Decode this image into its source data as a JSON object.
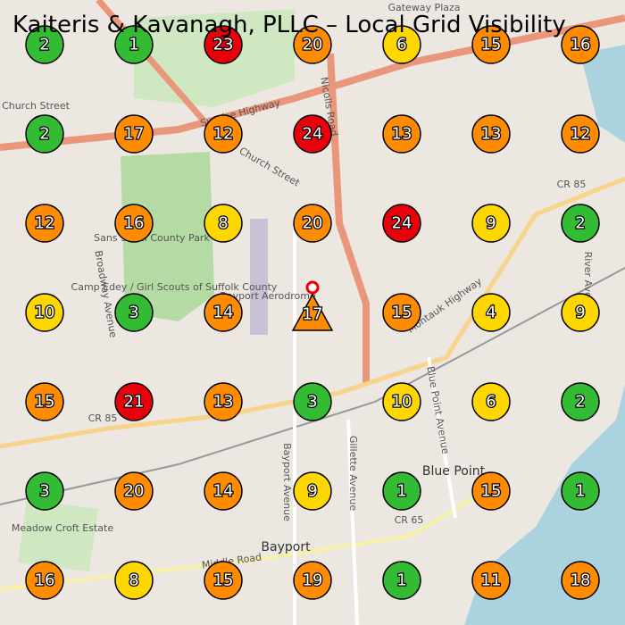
{
  "title": "Kaiteris & Kavanagh, PLLC – Local Grid Visibility",
  "map_labels": [
    "Church Street",
    "Sunrise Highway",
    "Nicolls Road",
    "Church Street",
    "Sans Souci County Park",
    "Camp Edey / Girl Scouts of Suffolk County",
    "Bayport Aerodrome",
    "Broadway Avenue",
    "CR 85",
    "Montauk Highway",
    "Blue Point",
    "Bayport",
    "CR 65",
    "Bayport Avenue",
    "Gillette Avenue",
    "Blue Point Avenue",
    "Meadow Croft Estate",
    "Middle Road",
    "Gateway Plaza",
    "River Avenue",
    "CR 85"
  ],
  "grid": {
    "rows": [
      [
        {
          "value": 2,
          "color": "#33bb33"
        },
        {
          "value": 1,
          "color": "#33bb33"
        },
        {
          "value": 23,
          "color": "#e8000b"
        },
        {
          "value": 20,
          "color": "#ff8c00"
        },
        {
          "value": 6,
          "color": "#ffd700"
        },
        {
          "value": 15,
          "color": "#ff8c00"
        },
        {
          "value": 16,
          "color": "#ff8c00"
        }
      ],
      [
        {
          "value": 2,
          "color": "#33bb33"
        },
        {
          "value": 17,
          "color": "#ff8c00"
        },
        {
          "value": 12,
          "color": "#ff8c00"
        },
        {
          "value": 24,
          "color": "#e8000b"
        },
        {
          "value": 13,
          "color": "#ff8c00"
        },
        {
          "value": 13,
          "color": "#ff8c00"
        },
        {
          "value": 12,
          "color": "#ff8c00"
        }
      ],
      [
        {
          "value": 12,
          "color": "#ff8c00"
        },
        {
          "value": 16,
          "color": "#ff8c00"
        },
        {
          "value": 8,
          "color": "#ffd700"
        },
        {
          "value": 20,
          "color": "#ff8c00"
        },
        {
          "value": 24,
          "color": "#e8000b"
        },
        {
          "value": 9,
          "color": "#ffd700"
        },
        {
          "value": 2,
          "color": "#33bb33"
        }
      ],
      [
        {
          "value": 10,
          "color": "#ffd700"
        },
        {
          "value": 3,
          "color": "#33bb33"
        },
        {
          "value": 14,
          "color": "#ff8c00"
        },
        {
          "value": 17,
          "color": "#ff8c00",
          "shape": "triangle"
        },
        {
          "value": 15,
          "color": "#ff8c00"
        },
        {
          "value": 4,
          "color": "#ffd700"
        },
        {
          "value": 9,
          "color": "#ffd700"
        }
      ],
      [
        {
          "value": 15,
          "color": "#ff8c00"
        },
        {
          "value": 21,
          "color": "#e8000b"
        },
        {
          "value": 13,
          "color": "#ff8c00"
        },
        {
          "value": 3,
          "color": "#33bb33"
        },
        {
          "value": 10,
          "color": "#ffd700"
        },
        {
          "value": 6,
          "color": "#ffd700"
        },
        {
          "value": 2,
          "color": "#33bb33"
        }
      ],
      [
        {
          "value": 3,
          "color": "#33bb33"
        },
        {
          "value": 20,
          "color": "#ff8c00"
        },
        {
          "value": 14,
          "color": "#ff8c00"
        },
        {
          "value": 9,
          "color": "#ffd700"
        },
        {
          "value": 1,
          "color": "#33bb33"
        },
        {
          "value": 15,
          "color": "#ff8c00"
        },
        {
          "value": 1,
          "color": "#33bb33"
        }
      ],
      [
        {
          "value": 16,
          "color": "#ff8c00"
        },
        {
          "value": 8,
          "color": "#ffd700"
        },
        {
          "value": 15,
          "color": "#ff8c00"
        },
        {
          "value": 19,
          "color": "#ff8c00"
        },
        {
          "value": 1,
          "color": "#33bb33"
        },
        {
          "value": 11,
          "color": "#ff8c00"
        },
        {
          "value": 18,
          "color": "#ff8c00"
        }
      ]
    ]
  }
}
